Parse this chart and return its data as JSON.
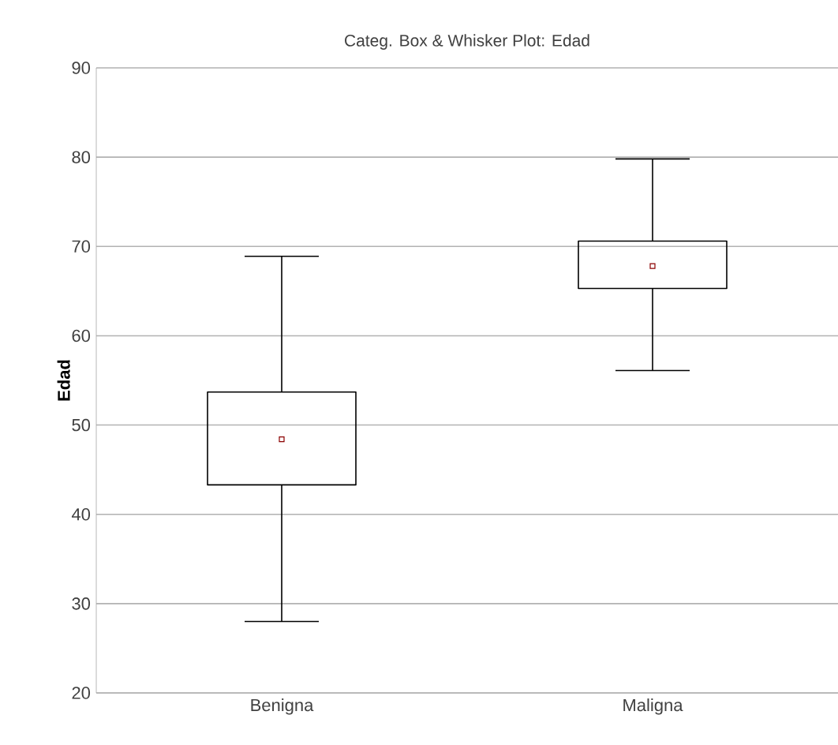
{
  "chart_data": {
    "type": "box",
    "title": "Categ. Box & Whisker Plot: Edad",
    "ylabel": "Edad",
    "categories": [
      "Benigna",
      "Maligna"
    ],
    "boxes": [
      {
        "low": 28.0,
        "q1": 43.3,
        "median": 48.4,
        "q3": 53.7,
        "high": 68.9
      },
      {
        "low": 56.1,
        "q1": 65.3,
        "median": 67.8,
        "q3": 70.6,
        "high": 79.8
      }
    ],
    "color": "#000000",
    "marker": "square",
    "ylim": [
      20,
      90
    ],
    "yticks": [
      20,
      30,
      40,
      50,
      60,
      70,
      80,
      90
    ],
    "grid": "y"
  }
}
